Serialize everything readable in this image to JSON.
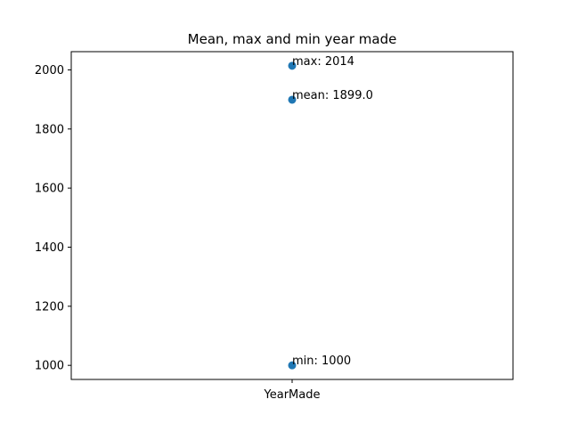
{
  "chart_data": {
    "type": "scatter",
    "title": "Mean, max and min year made",
    "xlabel": "",
    "ylabel": "",
    "categories": [
      "YearMade"
    ],
    "ylim": [
      952.3,
      2061.7
    ],
    "yticks": [
      1000,
      1200,
      1400,
      1600,
      1800,
      2000
    ],
    "grid": false,
    "legend": "none",
    "point_color": "#1f77b4",
    "points": [
      {
        "category": "YearMade",
        "y": 2014,
        "label": "max: 2014"
      },
      {
        "category": "YearMade",
        "y": 1899.0,
        "label": "mean: 1899.0"
      },
      {
        "category": "YearMade",
        "y": 1000,
        "label": "min: 1000"
      }
    ]
  }
}
